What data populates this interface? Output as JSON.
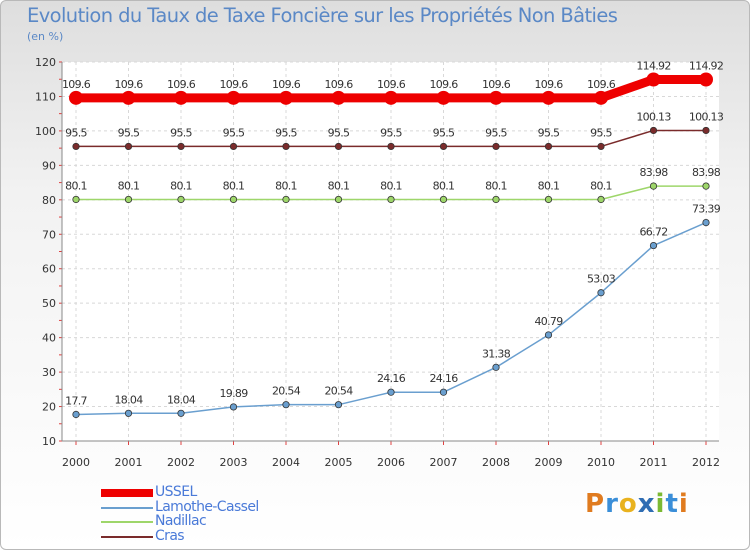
{
  "title": "Evolution du Taux de Taxe Foncière sur les Propriétés Non Bâties",
  "unit": "(en %)",
  "logo": {
    "text": "Proxiti",
    "letters": [
      "P",
      "r",
      "o",
      "x",
      "i",
      "t",
      "i"
    ],
    "colors": [
      "#e07b1f",
      "#3a8ed8",
      "#e9b21e",
      "#2f6db3",
      "#7bb932",
      "#3a8ed8",
      "#e07b1f"
    ]
  },
  "chart_data": {
    "type": "line",
    "title": "Evolution du Taux de Taxe Foncière sur les Propriétés Non Bâties",
    "ylabel": "(en %)",
    "xlabel": "",
    "ylim": [
      10,
      120
    ],
    "yticks": [
      10,
      20,
      30,
      40,
      50,
      60,
      70,
      80,
      90,
      100,
      110,
      120
    ],
    "grid": true,
    "legend_position": "bottom-left",
    "categories": [
      "2000",
      "2001",
      "2002",
      "2003",
      "2004",
      "2005",
      "2006",
      "2007",
      "2008",
      "2009",
      "2010",
      "2011",
      "2012"
    ],
    "series": [
      {
        "name": "USSEL",
        "color": "#ee0000",
        "values": [
          109.6,
          109.6,
          109.6,
          109.6,
          109.6,
          109.6,
          109.6,
          109.6,
          109.6,
          109.6,
          109.6,
          114.92,
          114.92
        ],
        "labels": [
          "109.6",
          "109.6",
          "109.6",
          "109.6",
          "109.6",
          "109.6",
          "109.6",
          "109.6",
          "109.6",
          "109.6",
          "109.6",
          "114.92",
          "114.92"
        ]
      },
      {
        "name": "Lamothe-Cassel",
        "color": "#6a9fcf",
        "values": [
          17.7,
          18.04,
          18.04,
          19.89,
          20.54,
          20.54,
          24.16,
          24.16,
          31.38,
          40.79,
          53.03,
          66.72,
          73.39
        ],
        "labels": [
          "17.7",
          "18.04",
          "18.04",
          "19.89",
          "20.54",
          "20.54",
          "24.16",
          "24.16",
          "31.38",
          "40.79",
          "53.03",
          "66.72",
          "73.39"
        ]
      },
      {
        "name": "Nadillac",
        "color": "#9ed66a",
        "values": [
          80.1,
          80.1,
          80.1,
          80.1,
          80.1,
          80.1,
          80.1,
          80.1,
          80.1,
          80.1,
          80.1,
          83.98,
          83.98
        ],
        "labels": [
          "80.1",
          "80.1",
          "80.1",
          "80.1",
          "80.1",
          "80.1",
          "80.1",
          "80.1",
          "80.1",
          "80.1",
          "80.1",
          "83.98",
          "83.98"
        ]
      },
      {
        "name": "Cras",
        "color": "#7a2b2b",
        "values": [
          95.5,
          95.5,
          95.5,
          95.5,
          95.5,
          95.5,
          95.5,
          95.5,
          95.5,
          95.5,
          95.5,
          100.13,
          100.13
        ],
        "labels": [
          "95.5",
          "95.5",
          "95.5",
          "95.5",
          "95.5",
          "95.5",
          "95.5",
          "95.5",
          "95.5",
          "95.5",
          "95.5",
          "100.13",
          "100.13"
        ]
      }
    ]
  }
}
